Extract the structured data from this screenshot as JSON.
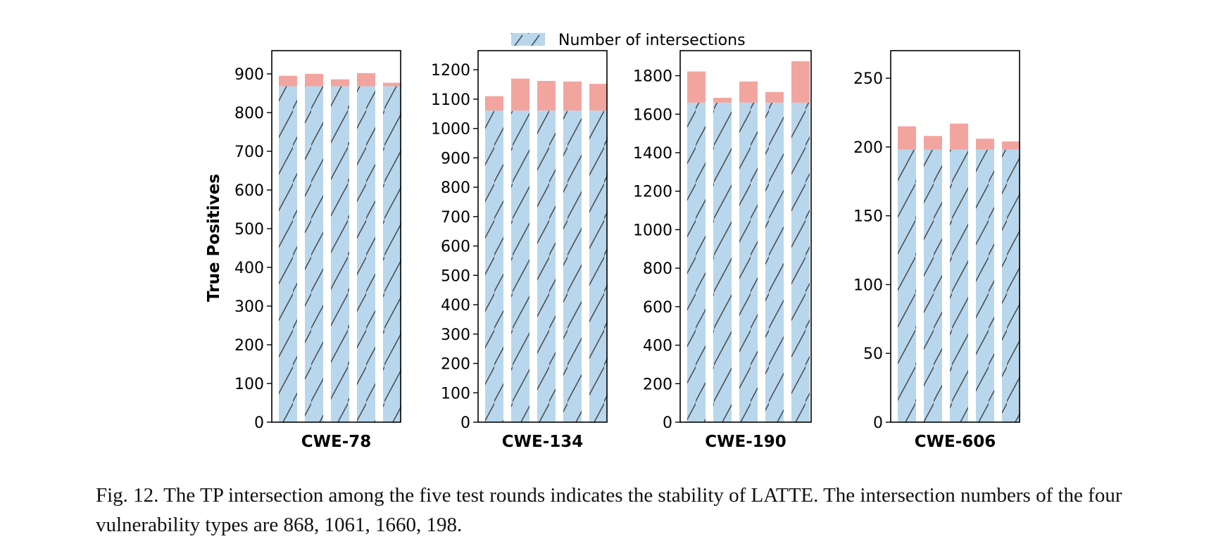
{
  "chart_data": {
    "type": "bar",
    "stacked": true,
    "ylabel": "True Positives",
    "legend": {
      "entries": [
        "Number of intersections"
      ],
      "placement": "top-center"
    },
    "series_style": {
      "base": {
        "color": "#b9d7ec",
        "hatch": "/",
        "name": "Number of intersections"
      },
      "extra": {
        "color": "#f2a59f"
      }
    },
    "panels": [
      {
        "xlabel": "CWE-78",
        "ylim": [
          0,
          960
        ],
        "yticks": [
          0,
          100,
          200,
          300,
          400,
          500,
          600,
          700,
          800,
          900
        ],
        "intersection": 868,
        "totals": [
          895,
          900,
          886,
          902,
          877
        ]
      },
      {
        "xlabel": "CWE-134",
        "ylim": [
          0,
          1265
        ],
        "yticks": [
          0,
          100,
          200,
          300,
          400,
          500,
          600,
          700,
          800,
          900,
          1000,
          1100,
          1200
        ],
        "intersection": 1061,
        "totals": [
          1110,
          1170,
          1162,
          1160,
          1152
        ]
      },
      {
        "xlabel": "CWE-190",
        "ylim": [
          0,
          1930
        ],
        "yticks": [
          0,
          200,
          400,
          600,
          800,
          1000,
          1200,
          1400,
          1600,
          1800
        ],
        "intersection": 1660,
        "totals": [
          1822,
          1685,
          1770,
          1715,
          1875
        ]
      },
      {
        "xlabel": "CWE-606",
        "ylim": [
          0,
          270
        ],
        "yticks": [
          0,
          50,
          100,
          150,
          200,
          250
        ],
        "intersection": 198,
        "totals": [
          215,
          208,
          217,
          206,
          204
        ]
      }
    ]
  },
  "caption": "Fig. 12.  The TP intersection among the five test rounds indicates the stability of LATTE. The intersection numbers of the four vulnerability types are 868, 1061, 1660, 198."
}
